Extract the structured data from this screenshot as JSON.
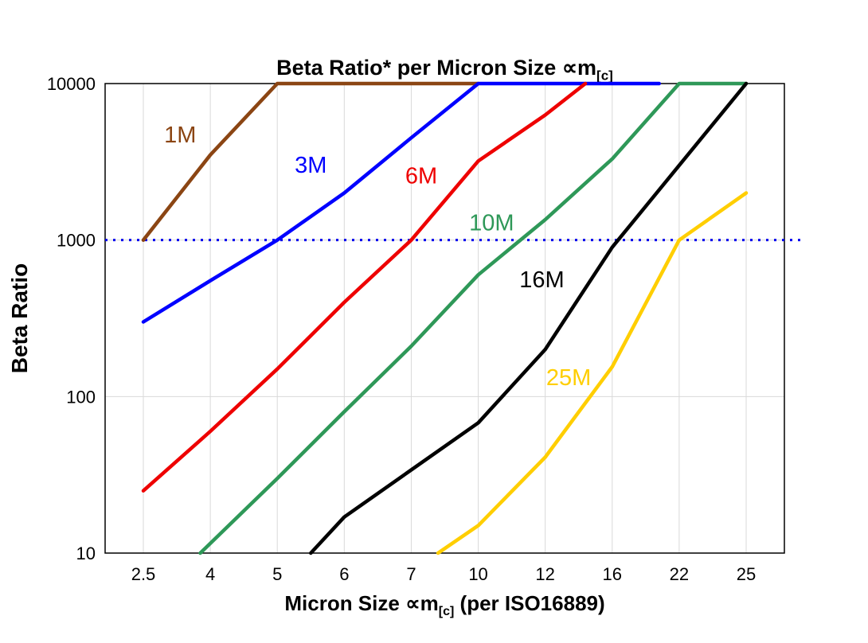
{
  "chart_data": {
    "type": "line",
    "title_parts": {
      "main": "Beta Ratio* per Micron Size ",
      "symbol": "∝m",
      "sub": "[c]"
    },
    "xlabel_parts": {
      "pre": "Micron Size ",
      "symbol": "∝m",
      "sub": "[c]",
      "post": " (per ISO16889)"
    },
    "ylabel": "Beta Ratio",
    "y_scale": "log",
    "ylim": [
      10,
      10000
    ],
    "y_ticks": [
      10,
      100,
      1000,
      10000
    ],
    "x_categories": [
      "2.5",
      "4",
      "5",
      "6",
      "7",
      "10",
      "12",
      "16",
      "22",
      "25"
    ],
    "grid": true,
    "legend_position": "none",
    "reference_line": {
      "value": 1000,
      "color": "#0000ee",
      "style": "dotted"
    },
    "series": [
      {
        "name": "1M",
        "color": "#8b4513",
        "points": [
          [
            0,
            1000
          ],
          [
            1,
            3500
          ],
          [
            2,
            10000
          ],
          [
            5,
            10000
          ]
        ],
        "label_pos": [
          0.55,
          4200
        ]
      },
      {
        "name": "3M",
        "color": "#0000ff",
        "points": [
          [
            0,
            300
          ],
          [
            1,
            550
          ],
          [
            2,
            1000
          ],
          [
            3,
            2000
          ],
          [
            4,
            4500
          ],
          [
            5,
            10000
          ],
          [
            7.7,
            10000
          ]
        ],
        "label_pos": [
          2.5,
          2700
        ]
      },
      {
        "name": "6M",
        "color": "#ee0000",
        "points": [
          [
            0,
            25
          ],
          [
            1,
            60
          ],
          [
            2,
            150
          ],
          [
            3,
            400
          ],
          [
            4,
            1000
          ],
          [
            5,
            3200
          ],
          [
            6,
            6300
          ],
          [
            6.6,
            10000
          ]
        ],
        "label_pos": [
          4.15,
          2300
        ]
      },
      {
        "name": "10M",
        "color": "#2e9858",
        "points": [
          [
            0.85,
            10
          ],
          [
            2,
            30
          ],
          [
            3,
            80
          ],
          [
            4,
            210
          ],
          [
            5,
            600
          ],
          [
            6,
            1350
          ],
          [
            7,
            3300
          ],
          [
            8,
            10000
          ],
          [
            9,
            10000
          ]
        ],
        "label_pos": [
          5.2,
          1150
        ]
      },
      {
        "name": "16M",
        "color": "#000000",
        "points": [
          [
            2.5,
            10
          ],
          [
            3,
            17
          ],
          [
            4,
            34
          ],
          [
            5,
            68
          ],
          [
            6,
            200
          ],
          [
            7,
            900
          ],
          [
            8,
            3000
          ],
          [
            9,
            10000
          ]
        ],
        "label_pos": [
          5.95,
          500
        ]
      },
      {
        "name": "25M",
        "color": "#ffce00",
        "points": [
          [
            4.4,
            10
          ],
          [
            5,
            15
          ],
          [
            6,
            41
          ],
          [
            7,
            155
          ],
          [
            8,
            1000
          ],
          [
            9,
            2000
          ]
        ],
        "label_pos": [
          6.35,
          118
        ]
      }
    ]
  }
}
